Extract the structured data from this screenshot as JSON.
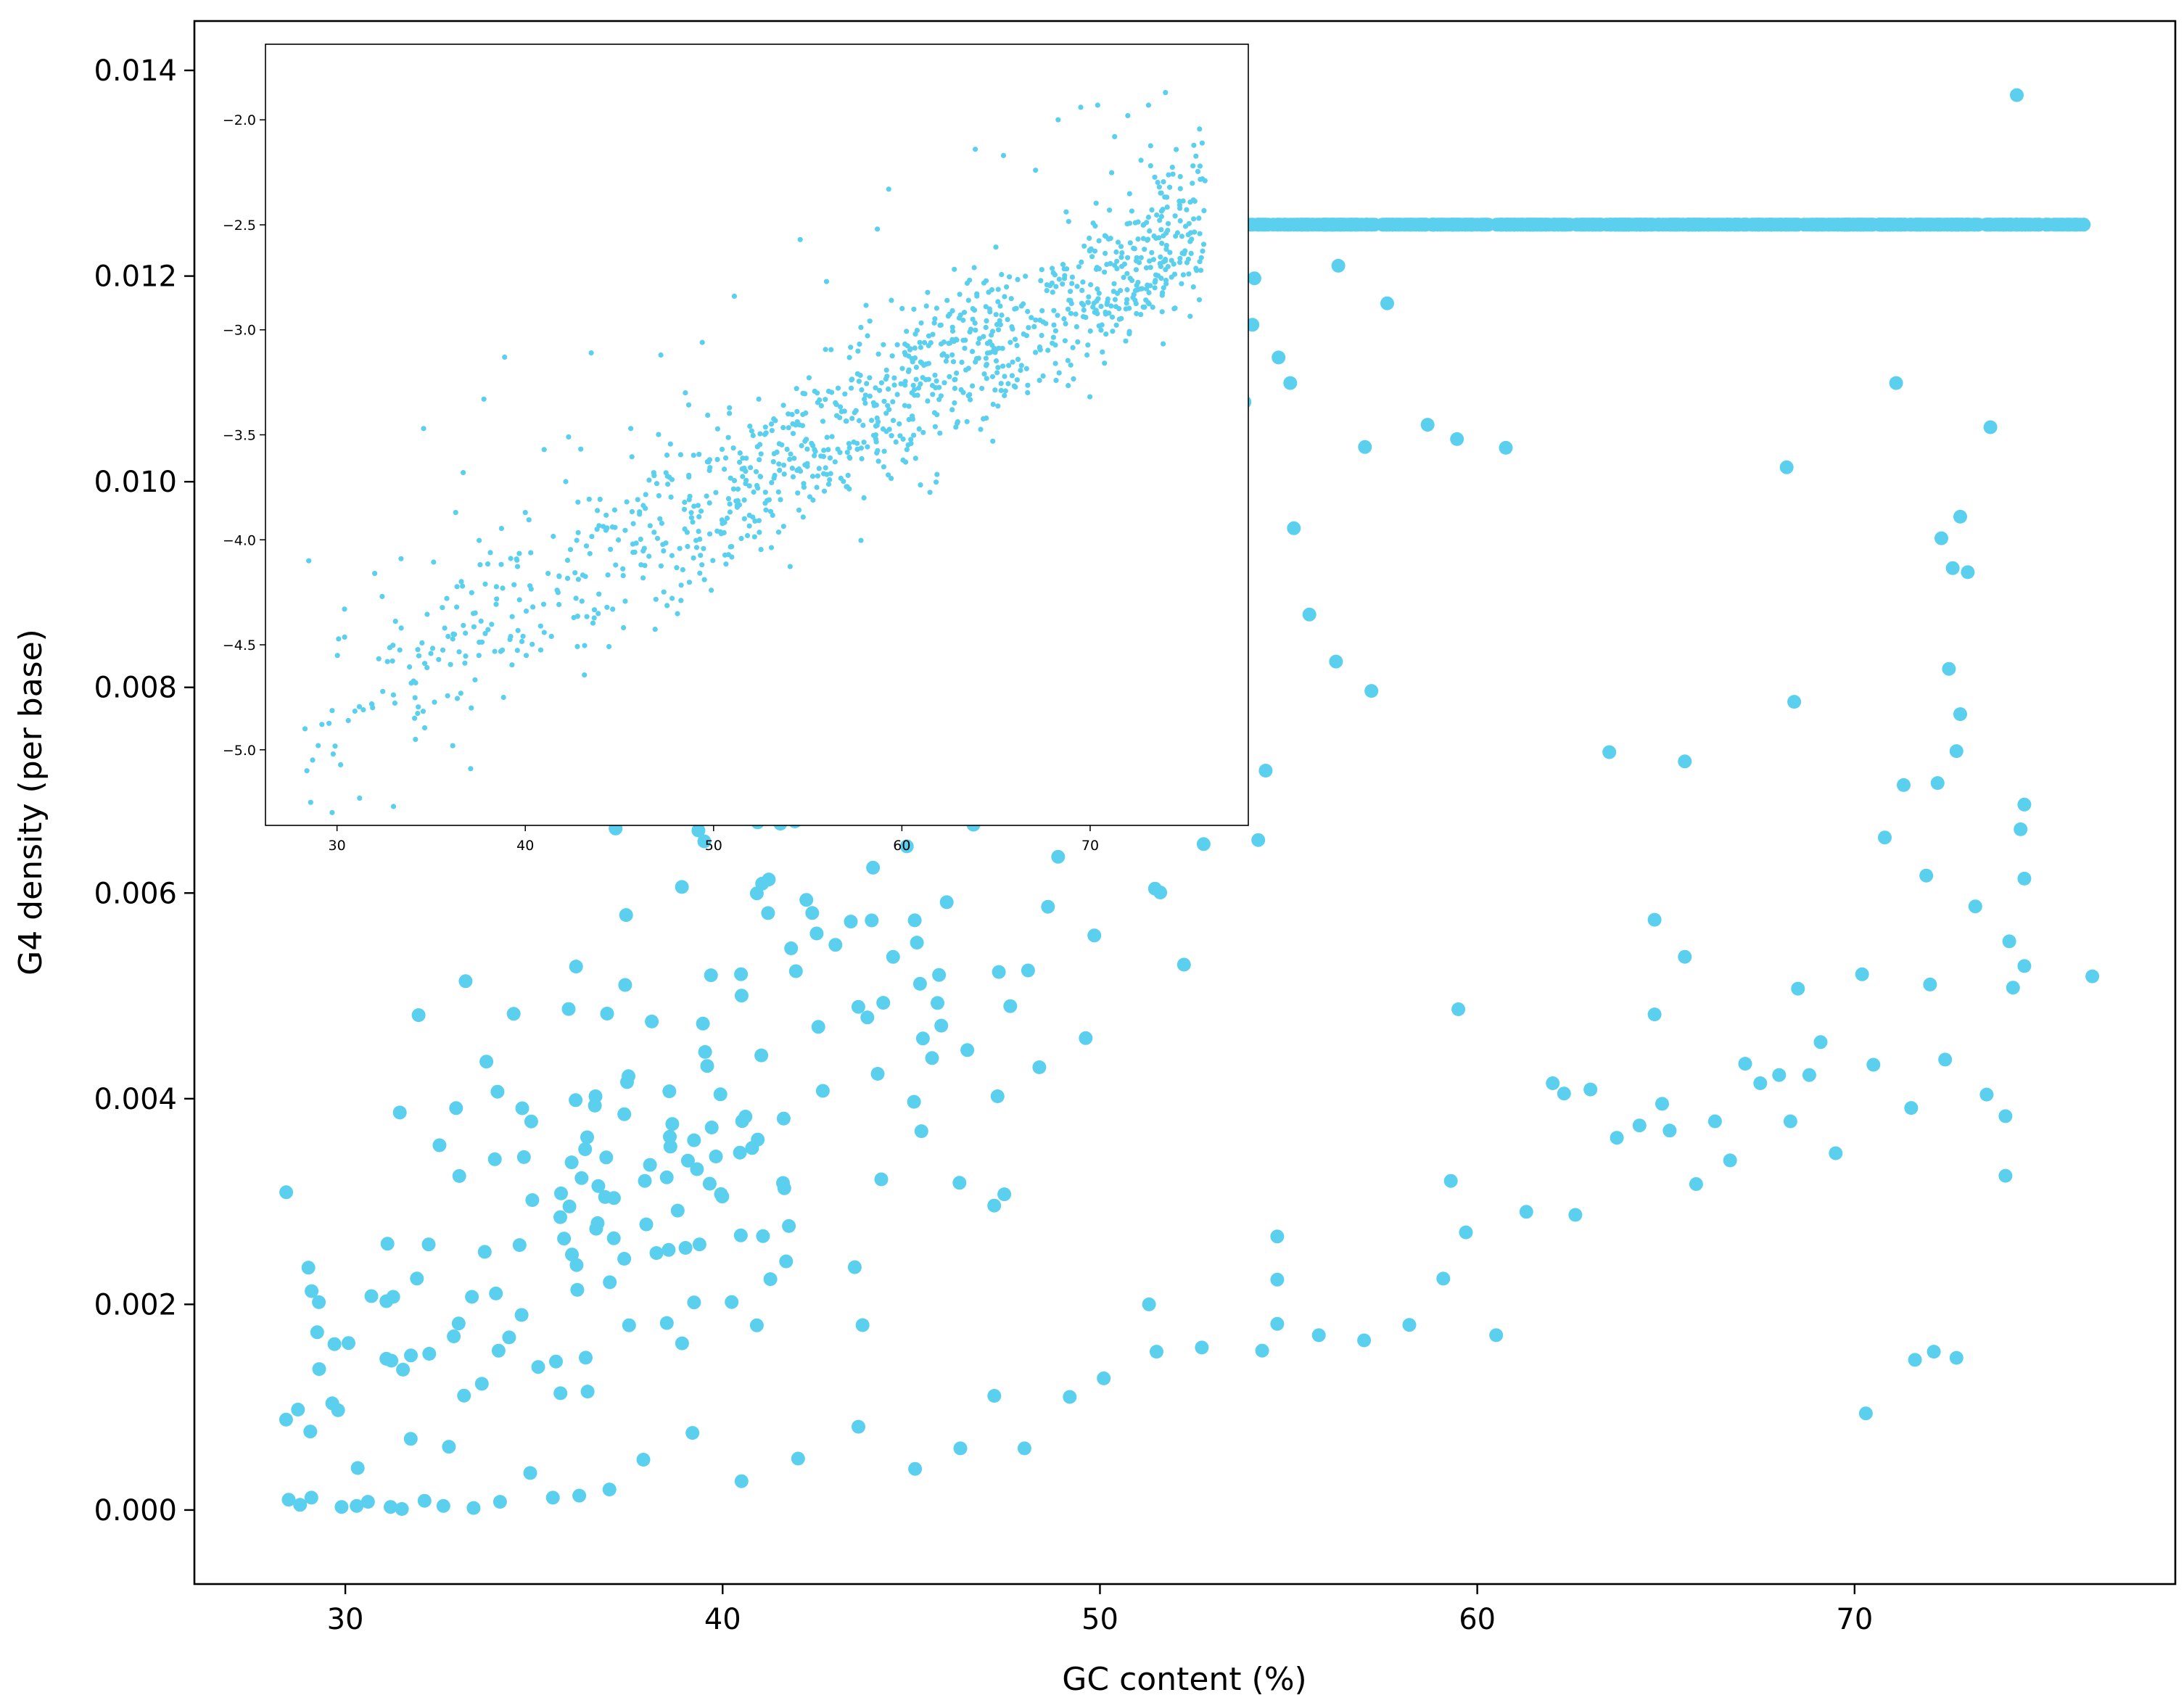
{
  "chart_data": [
    {
      "type": "scatter",
      "xlabel": "GC content (%)",
      "ylabel": "G4 density (per base)",
      "xlim": [
        26.0,
        78.5
      ],
      "ylim": [
        -0.00072,
        0.01448
      ],
      "x_ticks": [
        30,
        40,
        50,
        60,
        70
      ],
      "x_tick_labels": [
        "30",
        "40",
        "50",
        "60",
        "70"
      ],
      "y_ticks": [
        0.0,
        0.002,
        0.004,
        0.006,
        0.008,
        0.01,
        0.012,
        0.014
      ],
      "y_tick_labels": [
        "0.000",
        "0.002",
        "0.004",
        "0.006",
        "0.008",
        "0.010",
        "0.012",
        "0.014"
      ],
      "grid": false,
      "color": "#5bcfee",
      "approx_point_count": 1200,
      "relationship": "G4 density rises exponentially with GC content (ln(density) roughly linear in GC)",
      "trend_model": {
        "form": "exp(a + b*x)",
        "a": -9.5,
        "b": 0.101,
        "log_sd": 0.46
      },
      "series": [
        {
          "values": [
            {
              "x": 28.5,
              "y": 0.0001
            },
            {
              "x": 28.8,
              "y": 5e-05
            },
            {
              "x": 29.1,
              "y": 0.00012
            },
            {
              "x": 29.9,
              "y": 3e-05
            },
            {
              "x": 30.3,
              "y": 4e-05
            },
            {
              "x": 30.6,
              "y": 8e-05
            },
            {
              "x": 31.2,
              "y": 3e-05
            },
            {
              "x": 31.5,
              "y": 1e-05
            },
            {
              "x": 32.1,
              "y": 9e-05
            },
            {
              "x": 32.6,
              "y": 4e-05
            },
            {
              "x": 33.4,
              "y": 2e-05
            },
            {
              "x": 34.1,
              "y": 8e-05
            },
            {
              "x": 34.9,
              "y": 0.00036
            },
            {
              "x": 35.5,
              "y": 0.00012
            },
            {
              "x": 36.2,
              "y": 0.00014
            },
            {
              "x": 37.0,
              "y": 0.0002
            },
            {
              "x": 37.9,
              "y": 0.00049
            },
            {
              "x": 39.2,
              "y": 0.00075
            },
            {
              "x": 40.5,
              "y": 0.00028
            },
            {
              "x": 42.0,
              "y": 0.0005
            },
            {
              "x": 43.6,
              "y": 0.00081
            },
            {
              "x": 45.1,
              "y": 0.0004
            },
            {
              "x": 46.3,
              "y": 0.0006
            },
            {
              "x": 47.2,
              "y": 0.00111
            },
            {
              "x": 48.0,
              "y": 0.0006
            },
            {
              "x": 49.2,
              "y": 0.0011
            },
            {
              "x": 50.1,
              "y": 0.00128
            },
            {
              "x": 51.3,
              "y": 0.002
            },
            {
              "x": 51.5,
              "y": 0.00154
            },
            {
              "x": 52.7,
              "y": 0.00158
            },
            {
              "x": 54.3,
              "y": 0.00155
            },
            {
              "x": 54.7,
              "y": 0.00266
            },
            {
              "x": 54.7,
              "y": 0.00224
            },
            {
              "x": 54.7,
              "y": 0.00181
            },
            {
              "x": 55.8,
              "y": 0.0017
            },
            {
              "x": 57.0,
              "y": 0.00165
            },
            {
              "x": 58.2,
              "y": 0.0018
            },
            {
              "x": 59.1,
              "y": 0.00225
            },
            {
              "x": 59.3,
              "y": 0.0032
            },
            {
              "x": 59.5,
              "y": 0.00487
            },
            {
              "x": 59.7,
              "y": 0.0027
            },
            {
              "x": 60.5,
              "y": 0.0017
            },
            {
              "x": 61.3,
              "y": 0.0029
            },
            {
              "x": 62.0,
              "y": 0.00415
            },
            {
              "x": 62.3,
              "y": 0.00405
            },
            {
              "x": 62.6,
              "y": 0.00287
            },
            {
              "x": 63.0,
              "y": 0.00409
            },
            {
              "x": 63.5,
              "y": 0.00737
            },
            {
              "x": 63.7,
              "y": 0.00362
            },
            {
              "x": 64.3,
              "y": 0.00374
            },
            {
              "x": 64.7,
              "y": 0.00574
            },
            {
              "x": 64.7,
              "y": 0.00482
            },
            {
              "x": 64.9,
              "y": 0.00395
            },
            {
              "x": 65.1,
              "y": 0.00369
            },
            {
              "x": 65.5,
              "y": 0.00538
            },
            {
              "x": 65.5,
              "y": 0.00728
            },
            {
              "x": 65.8,
              "y": 0.00317
            },
            {
              "x": 66.3,
              "y": 0.00378
            },
            {
              "x": 66.7,
              "y": 0.0034
            },
            {
              "x": 67.1,
              "y": 0.00434
            },
            {
              "x": 67.5,
              "y": 0.00415
            },
            {
              "x": 68.0,
              "y": 0.00423
            },
            {
              "x": 68.2,
              "y": 0.01014
            },
            {
              "x": 68.3,
              "y": 0.00378
            },
            {
              "x": 68.4,
              "y": 0.00786
            },
            {
              "x": 68.5,
              "y": 0.00507
            },
            {
              "x": 68.8,
              "y": 0.00423
            },
            {
              "x": 69.1,
              "y": 0.00455
            },
            {
              "x": 69.5,
              "y": 0.00347
            },
            {
              "x": 70.2,
              "y": 0.00521
            },
            {
              "x": 70.3,
              "y": 0.00094
            },
            {
              "x": 70.5,
              "y": 0.00433
            },
            {
              "x": 70.8,
              "y": 0.00654
            },
            {
              "x": 71.1,
              "y": 0.01096
            },
            {
              "x": 71.3,
              "y": 0.00705
            },
            {
              "x": 71.5,
              "y": 0.00391
            },
            {
              "x": 71.6,
              "y": 0.00146
            },
            {
              "x": 71.9,
              "y": 0.00617
            },
            {
              "x": 72.0,
              "y": 0.00511
            },
            {
              "x": 72.1,
              "y": 0.00154
            },
            {
              "x": 72.2,
              "y": 0.00707
            },
            {
              "x": 72.3,
              "y": 0.00945
            },
            {
              "x": 72.4,
              "y": 0.00438
            },
            {
              "x": 72.5,
              "y": 0.00818
            },
            {
              "x": 72.6,
              "y": 0.00916
            },
            {
              "x": 72.7,
              "y": 0.00738
            },
            {
              "x": 72.7,
              "y": 0.00148
            },
            {
              "x": 72.8,
              "y": 0.00966
            },
            {
              "x": 72.8,
              "y": 0.00774
            },
            {
              "x": 73.0,
              "y": 0.00912
            },
            {
              "x": 73.2,
              "y": 0.00587
            },
            {
              "x": 73.5,
              "y": 0.00404
            },
            {
              "x": 73.6,
              "y": 0.01053
            },
            {
              "x": 74.0,
              "y": 0.00383
            },
            {
              "x": 74.0,
              "y": 0.00325
            },
            {
              "x": 74.1,
              "y": 0.00553
            },
            {
              "x": 74.2,
              "y": 0.00508
            },
            {
              "x": 74.3,
              "y": 0.01376
            },
            {
              "x": 74.4,
              "y": 0.00662
            },
            {
              "x": 74.5,
              "y": 0.00614
            },
            {
              "x": 74.5,
              "y": 0.00686
            },
            {
              "x": 74.5,
              "y": 0.00529
            },
            {
              "x": 76.3,
              "y": 0.00519
            }
          ]
        }
      ]
    },
    {
      "type": "scatter",
      "inset": true,
      "xlabel": "",
      "ylabel": "",
      "xlim": [
        26.2,
        78.4
      ],
      "ylim": [
        -5.36,
        -1.64
      ],
      "x_ticks": [
        30,
        40,
        50,
        60,
        70
      ],
      "x_tick_labels": [
        "30",
        "40",
        "50",
        "60",
        "70"
      ],
      "y_ticks": [
        -5.0,
        -4.5,
        -4.0,
        -3.5,
        -3.0,
        -2.5,
        -2.0
      ],
      "y_tick_labels": [
        "−5.0",
        "−4.5",
        "−4.0",
        "−3.5",
        "−3.0",
        "−2.5",
        "−2.0"
      ],
      "grid": false,
      "color": "#5bcfee",
      "approx_point_count": 1200,
      "relationship": "log10 of G4 density increases linearly with GC content",
      "trend_model": {
        "form": "a + b*x",
        "a": -6.31,
        "b": 0.0499,
        "sd": 0.2
      },
      "series": [
        {
          "values": [
            {
              "x": 28.5,
              "y": -4.1
            },
            {
              "x": 28.3,
              "y": -4.9
            },
            {
              "x": 28.4,
              "y": -5.1
            },
            {
              "x": 28.6,
              "y": -5.25
            },
            {
              "x": 29.0,
              "y": -4.98
            },
            {
              "x": 29.8,
              "y": -5.02
            },
            {
              "x": 30.4,
              "y": -4.33
            },
            {
              "x": 31.2,
              "y": -5.23
            },
            {
              "x": 32.0,
              "y": -4.16
            },
            {
              "x": 32.4,
              "y": -4.27
            },
            {
              "x": 33.0,
              "y": -5.27
            },
            {
              "x": 33.4,
              "y": -4.09
            },
            {
              "x": 34.6,
              "y": -3.47
            },
            {
              "x": 35.4,
              "y": -4.57
            },
            {
              "x": 36.3,
              "y": -3.87
            },
            {
              "x": 36.7,
              "y": -3.68
            },
            {
              "x": 37.1,
              "y": -5.09
            },
            {
              "x": 37.8,
              "y": -3.33
            },
            {
              "x": 38.9,
              "y": -3.13
            },
            {
              "x": 40.0,
              "y": -3.87
            },
            {
              "x": 41.0,
              "y": -3.57
            },
            {
              "x": 42.3,
              "y": -3.51
            },
            {
              "x": 43.5,
              "y": -3.11
            },
            {
              "x": 44.8,
              "y": -4.12
            },
            {
              "x": 45.6,
              "y": -3.47
            },
            {
              "x": 47.2,
              "y": -3.12
            },
            {
              "x": 48.5,
              "y": -3.3
            },
            {
              "x": 49.4,
              "y": -3.06
            },
            {
              "x": 51.1,
              "y": -2.84
            },
            {
              "x": 52.4,
              "y": -3.33
            },
            {
              "x": 54.6,
              "y": -2.57
            },
            {
              "x": 56.0,
              "y": -2.77
            },
            {
              "x": 58.7,
              "y": -2.52
            },
            {
              "x": 59.3,
              "y": -2.33
            },
            {
              "x": 60.2,
              "y": -3.63
            },
            {
              "x": 62.4,
              "y": -2.86
            },
            {
              "x": 63.9,
              "y": -2.14
            },
            {
              "x": 65.4,
              "y": -2.17
            },
            {
              "x": 67.1,
              "y": -2.24
            },
            {
              "x": 68.3,
              "y": -2.0
            },
            {
              "x": 69.5,
              "y": -1.94
            },
            {
              "x": 70.4,
              "y": -1.93
            },
            {
              "x": 71.3,
              "y": -2.08
            },
            {
              "x": 72.0,
              "y": -1.98
            },
            {
              "x": 73.1,
              "y": -1.93
            },
            {
              "x": 74.0,
              "y": -1.87
            },
            {
              "x": 72.4,
              "y": -2.49
            },
            {
              "x": 69.9,
              "y": -2.87
            },
            {
              "x": 67.5,
              "y": -3.22
            },
            {
              "x": 65.3,
              "y": -2.93
            },
            {
              "x": 76.1,
              "y": -2.29
            }
          ]
        }
      ]
    }
  ]
}
